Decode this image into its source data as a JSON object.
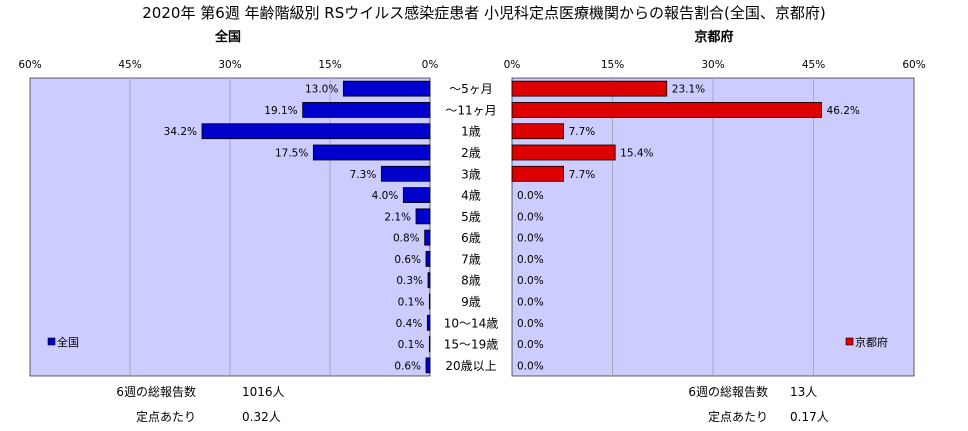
{
  "title": "2020年 第6週 年齢階級別 RSウイルス感染症患者 小児科定点医療機関からの報告割合(全国、京都府)",
  "chart_data": [
    {
      "type": "bar",
      "orientation": "horizontal",
      "direction": "right-to-left",
      "title": "全国",
      "categories": [
        "～5ヶ月",
        "～11ヶ月",
        "1歳",
        "2歳",
        "3歳",
        "4歳",
        "5歳",
        "6歳",
        "7歳",
        "8歳",
        "9歳",
        "10～14歳",
        "15～19歳",
        "20歳以上"
      ],
      "series": [
        {
          "name": "全国",
          "color": "#0000cc",
          "values": [
            13.0,
            19.1,
            34.2,
            17.5,
            7.3,
            4.0,
            2.1,
            0.8,
            0.6,
            0.3,
            0.1,
            0.4,
            0.1,
            0.6
          ]
        }
      ],
      "value_labels": [
        "13.0%",
        "19.1%",
        "34.2%",
        "17.5%",
        "7.3%",
        "4.0%",
        "2.1%",
        "0.8%",
        "0.6%",
        "0.3%",
        "0.1%",
        "0.4%",
        "0.1%",
        "0.6%"
      ],
      "xlim": [
        0,
        60
      ],
      "ticks": [
        "0%",
        "15%",
        "30%",
        "45%",
        "60%"
      ],
      "grid": true,
      "legend": "bottom-left"
    },
    {
      "type": "bar",
      "orientation": "horizontal",
      "direction": "left-to-right",
      "title": "京都府",
      "categories": [
        "～5ヶ月",
        "～11ヶ月",
        "1歳",
        "2歳",
        "3歳",
        "4歳",
        "5歳",
        "6歳",
        "7歳",
        "8歳",
        "9歳",
        "10～14歳",
        "15～19歳",
        "20歳以上"
      ],
      "series": [
        {
          "name": "京都府",
          "color": "#dd0000",
          "values": [
            23.1,
            46.2,
            7.7,
            15.4,
            7.7,
            0.0,
            0.0,
            0.0,
            0.0,
            0.0,
            0.0,
            0.0,
            0.0,
            0.0
          ]
        }
      ],
      "value_labels": [
        "23.1%",
        "46.2%",
        "7.7%",
        "15.4%",
        "7.7%",
        "0.0%",
        "0.0%",
        "0.0%",
        "0.0%",
        "0.0%",
        "0.0%",
        "0.0%",
        "0.0%",
        "0.0%"
      ],
      "xlim": [
        0,
        60
      ],
      "ticks": [
        "0%",
        "15%",
        "30%",
        "45%",
        "60%"
      ],
      "grid": true,
      "legend": "bottom-right"
    }
  ],
  "summary": {
    "national": {
      "total_label": "6週の総報告数",
      "total_value": "1016人",
      "per_label": "定点あたり",
      "per_value": "0.32人"
    },
    "kyoto": {
      "total_label": "6週の総報告数",
      "total_value": "13人",
      "per_label": "定点あたり",
      "per_value": "0.17人"
    }
  },
  "colors": {
    "plot_background": "#ccccff",
    "national_bar": "#0000cc",
    "kyoto_bar": "#dd0000",
    "grid": "#a0a0a0"
  }
}
